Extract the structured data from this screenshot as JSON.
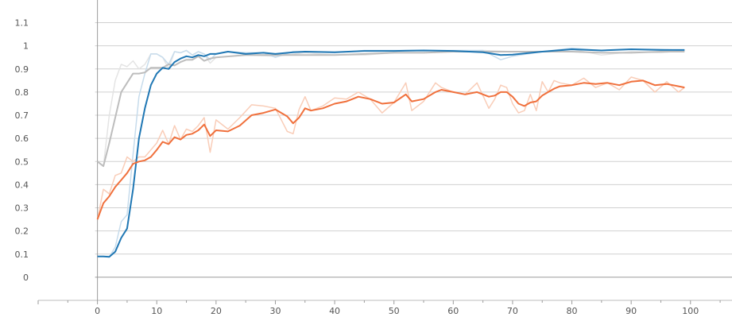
{
  "chart_data": {
    "type": "line",
    "title": "",
    "xlabel": "",
    "ylabel": "",
    "xlim": [
      -10,
      107
    ],
    "ylim": [
      -0.1,
      1.15
    ],
    "x_ticks": [
      0,
      10,
      20,
      30,
      40,
      50,
      60,
      70,
      80,
      90,
      100
    ],
    "y_ticks": [
      0,
      0.1,
      0.2,
      0.3,
      0.4,
      0.5,
      0.6,
      0.7,
      0.8,
      0.9,
      1,
      1.1
    ],
    "x_tick_labels": [
      "0",
      "10",
      "20",
      "30",
      "40",
      "50",
      "60",
      "70",
      "80",
      "90",
      "100"
    ],
    "y_tick_labels": [
      "0",
      "0.1",
      "0.2",
      "0.3",
      "0.4",
      "0.5",
      "0.6",
      "0.7",
      "0.8",
      "0.9",
      "1",
      "1.1"
    ],
    "grid": "horizontal",
    "series": [
      {
        "color": "#bdbdbd",
        "raw_color": "#e4e4e4",
        "x": [
          0,
          1,
          2,
          3,
          4,
          5,
          6,
          7,
          8,
          9,
          10,
          11,
          12,
          13,
          14,
          15,
          16,
          17,
          18,
          19,
          20,
          25,
          30,
          35,
          40,
          45,
          50,
          55,
          60,
          65,
          70,
          75,
          80,
          85,
          90,
          95,
          99
        ],
        "smoothed": [
          0.5,
          0.48,
          0.58,
          0.69,
          0.8,
          0.84,
          0.88,
          0.88,
          0.885,
          0.905,
          0.905,
          0.905,
          0.92,
          0.915,
          0.93,
          0.94,
          0.94,
          0.955,
          0.935,
          0.945,
          0.95,
          0.96,
          0.96,
          0.96,
          0.96,
          0.965,
          0.97,
          0.97,
          0.975,
          0.975,
          0.975,
          0.975,
          0.975,
          0.97,
          0.97,
          0.975,
          0.975
        ],
        "raw": [
          0.5,
          0.48,
          0.7,
          0.85,
          0.92,
          0.91,
          0.935,
          0.9,
          0.92,
          0.965,
          0.965,
          0.95,
          0.9,
          0.975,
          0.97,
          0.98,
          0.96,
          0.975,
          0.965,
          0.925,
          0.95,
          0.96,
          0.955,
          0.97,
          0.96,
          0.96,
          0.97,
          0.97,
          0.975,
          0.98,
          0.975,
          0.975,
          0.985,
          0.96,
          0.975,
          0.97,
          0.98
        ]
      },
      {
        "color": "#1f77b4",
        "raw_color": "#c7dcec",
        "x": [
          0,
          1,
          2,
          3,
          4,
          5,
          6,
          7,
          8,
          9,
          10,
          11,
          12,
          13,
          14,
          15,
          16,
          17,
          18,
          19,
          20,
          22,
          25,
          28,
          30,
          33,
          35,
          40,
          45,
          50,
          55,
          60,
          65,
          68,
          70,
          75,
          80,
          85,
          90,
          95,
          99
        ],
        "smoothed": [
          0.09,
          0.09,
          0.088,
          0.11,
          0.17,
          0.21,
          0.38,
          0.6,
          0.73,
          0.83,
          0.88,
          0.905,
          0.9,
          0.93,
          0.945,
          0.955,
          0.95,
          0.96,
          0.955,
          0.965,
          0.965,
          0.975,
          0.965,
          0.97,
          0.965,
          0.972,
          0.975,
          0.972,
          0.978,
          0.978,
          0.98,
          0.978,
          0.972,
          0.96,
          0.962,
          0.975,
          0.985,
          0.98,
          0.985,
          0.982,
          0.982
        ],
        "raw": [
          0.09,
          0.09,
          0.088,
          0.13,
          0.24,
          0.27,
          0.53,
          0.78,
          0.88,
          0.965,
          0.965,
          0.95,
          0.92,
          0.975,
          0.97,
          0.98,
          0.96,
          0.975,
          0.965,
          0.94,
          0.965,
          0.975,
          0.97,
          0.97,
          0.95,
          0.975,
          0.975,
          0.97,
          0.98,
          0.98,
          0.98,
          0.98,
          0.98,
          0.94,
          0.955,
          0.975,
          0.99,
          0.98,
          0.985,
          0.985,
          0.98
        ]
      },
      {
        "color": "#f0703c",
        "raw_color": "#f9cdb8",
        "x": [
          0,
          1,
          2,
          3,
          4,
          5,
          6,
          7,
          8,
          9,
          10,
          11,
          12,
          13,
          14,
          15,
          16,
          17,
          18,
          19,
          20,
          22,
          24,
          26,
          28,
          30,
          32,
          33,
          34,
          35,
          36,
          38,
          40,
          42,
          44,
          46,
          48,
          50,
          52,
          53,
          55,
          57,
          58,
          60,
          62,
          64,
          66,
          67,
          68,
          69,
          70,
          71,
          72,
          73,
          74,
          75,
          76,
          77,
          78,
          80,
          82,
          84,
          86,
          88,
          90,
          92,
          94,
          96,
          98,
          99
        ],
        "smoothed": [
          0.25,
          0.32,
          0.35,
          0.39,
          0.42,
          0.45,
          0.49,
          0.5,
          0.505,
          0.52,
          0.55,
          0.585,
          0.575,
          0.605,
          0.595,
          0.615,
          0.62,
          0.635,
          0.66,
          0.61,
          0.635,
          0.63,
          0.655,
          0.7,
          0.71,
          0.725,
          0.695,
          0.665,
          0.69,
          0.73,
          0.72,
          0.73,
          0.75,
          0.76,
          0.78,
          0.77,
          0.75,
          0.755,
          0.79,
          0.76,
          0.77,
          0.8,
          0.81,
          0.8,
          0.79,
          0.8,
          0.78,
          0.785,
          0.8,
          0.8,
          0.78,
          0.75,
          0.74,
          0.755,
          0.76,
          0.785,
          0.8,
          0.815,
          0.825,
          0.83,
          0.84,
          0.835,
          0.84,
          0.83,
          0.845,
          0.85,
          0.83,
          0.835,
          0.825,
          0.82
        ],
        "raw": [
          0.25,
          0.38,
          0.36,
          0.44,
          0.45,
          0.52,
          0.5,
          0.52,
          0.52,
          0.55,
          0.58,
          0.635,
          0.575,
          0.655,
          0.595,
          0.64,
          0.63,
          0.655,
          0.69,
          0.54,
          0.68,
          0.64,
          0.69,
          0.745,
          0.74,
          0.73,
          0.63,
          0.62,
          0.725,
          0.78,
          0.72,
          0.74,
          0.775,
          0.77,
          0.8,
          0.77,
          0.71,
          0.755,
          0.84,
          0.72,
          0.76,
          0.84,
          0.82,
          0.8,
          0.79,
          0.84,
          0.73,
          0.77,
          0.83,
          0.82,
          0.75,
          0.71,
          0.72,
          0.79,
          0.72,
          0.845,
          0.8,
          0.85,
          0.84,
          0.83,
          0.86,
          0.82,
          0.84,
          0.81,
          0.865,
          0.85,
          0.8,
          0.845,
          0.8,
          0.82
        ]
      }
    ]
  }
}
